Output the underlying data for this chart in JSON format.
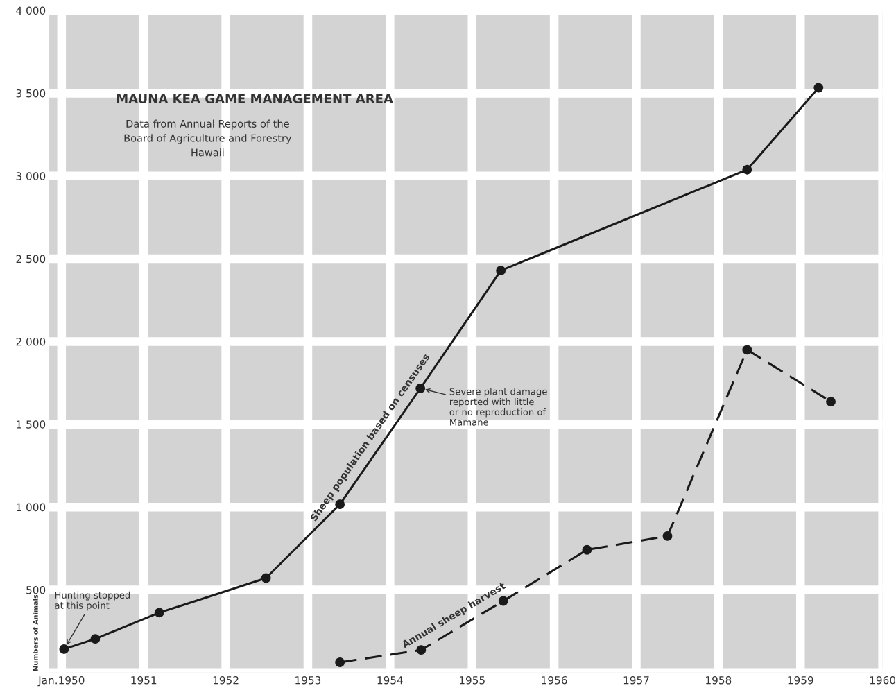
{
  "chart_data": {
    "type": "line",
    "title": "MAUNA KEA GAME MANAGEMENT AREA",
    "subtitle": "Data from Annual Reports of the\nBoard of Agriculture and Forestry\nHawaii",
    "ylabel": "Numbers of Animals",
    "series": [
      {
        "name": "Sheep population based on censuses",
        "color": "#1a1a1a",
        "line_style": "solid",
        "x": [
          1950.03,
          1950.41,
          1951.19,
          1952.49,
          1953.39,
          1954.37,
          1955.35,
          1958.35,
          1959.22
        ],
        "values": [
          142,
          204,
          362,
          571,
          1017,
          1717,
          2429,
          3038,
          3533
        ]
      },
      {
        "name": "Annual sheep harvest",
        "color": "#1a1a1a",
        "line_style": "dashed",
        "x": [
          1953.39,
          1954.38,
          1955.38,
          1956.4,
          1957.38,
          1958.35,
          1959.37
        ],
        "values": [
          62,
          137,
          433,
          742,
          825,
          1950,
          1637
        ]
      }
    ],
    "xlim": [
      1949.85,
      1960.0
    ],
    "ylim": [
      0,
      4000
    ],
    "xticks": [
      {
        "value": 1950,
        "label": "Jan.1950"
      },
      1951,
      1952,
      1953,
      1954,
      1955,
      1956,
      1957,
      1958,
      1959,
      1960
    ],
    "yticks": [
      {
        "value": 0,
        "label": null
      },
      500,
      {
        "value": 1000,
        "label": "1 000"
      },
      {
        "value": 1500,
        "label": "1 500"
      },
      {
        "value": 2000,
        "label": "2 000"
      },
      {
        "value": 2500,
        "label": "2 500"
      },
      {
        "value": 3000,
        "label": "3 000"
      },
      {
        "value": 3500,
        "label": "3 500"
      },
      {
        "value": 4000,
        "label": "4 000"
      }
    ],
    "annotations": [
      {
        "text": "Hunting stopped\nat this point",
        "x": 1950.03,
        "y": 142
      },
      {
        "text": "Severe plant damage\nreported with little\nor no reproduction of\nMamane",
        "x": 1954.37,
        "y": 1717
      }
    ],
    "grid": true,
    "marker": "circle",
    "legend": false
  }
}
